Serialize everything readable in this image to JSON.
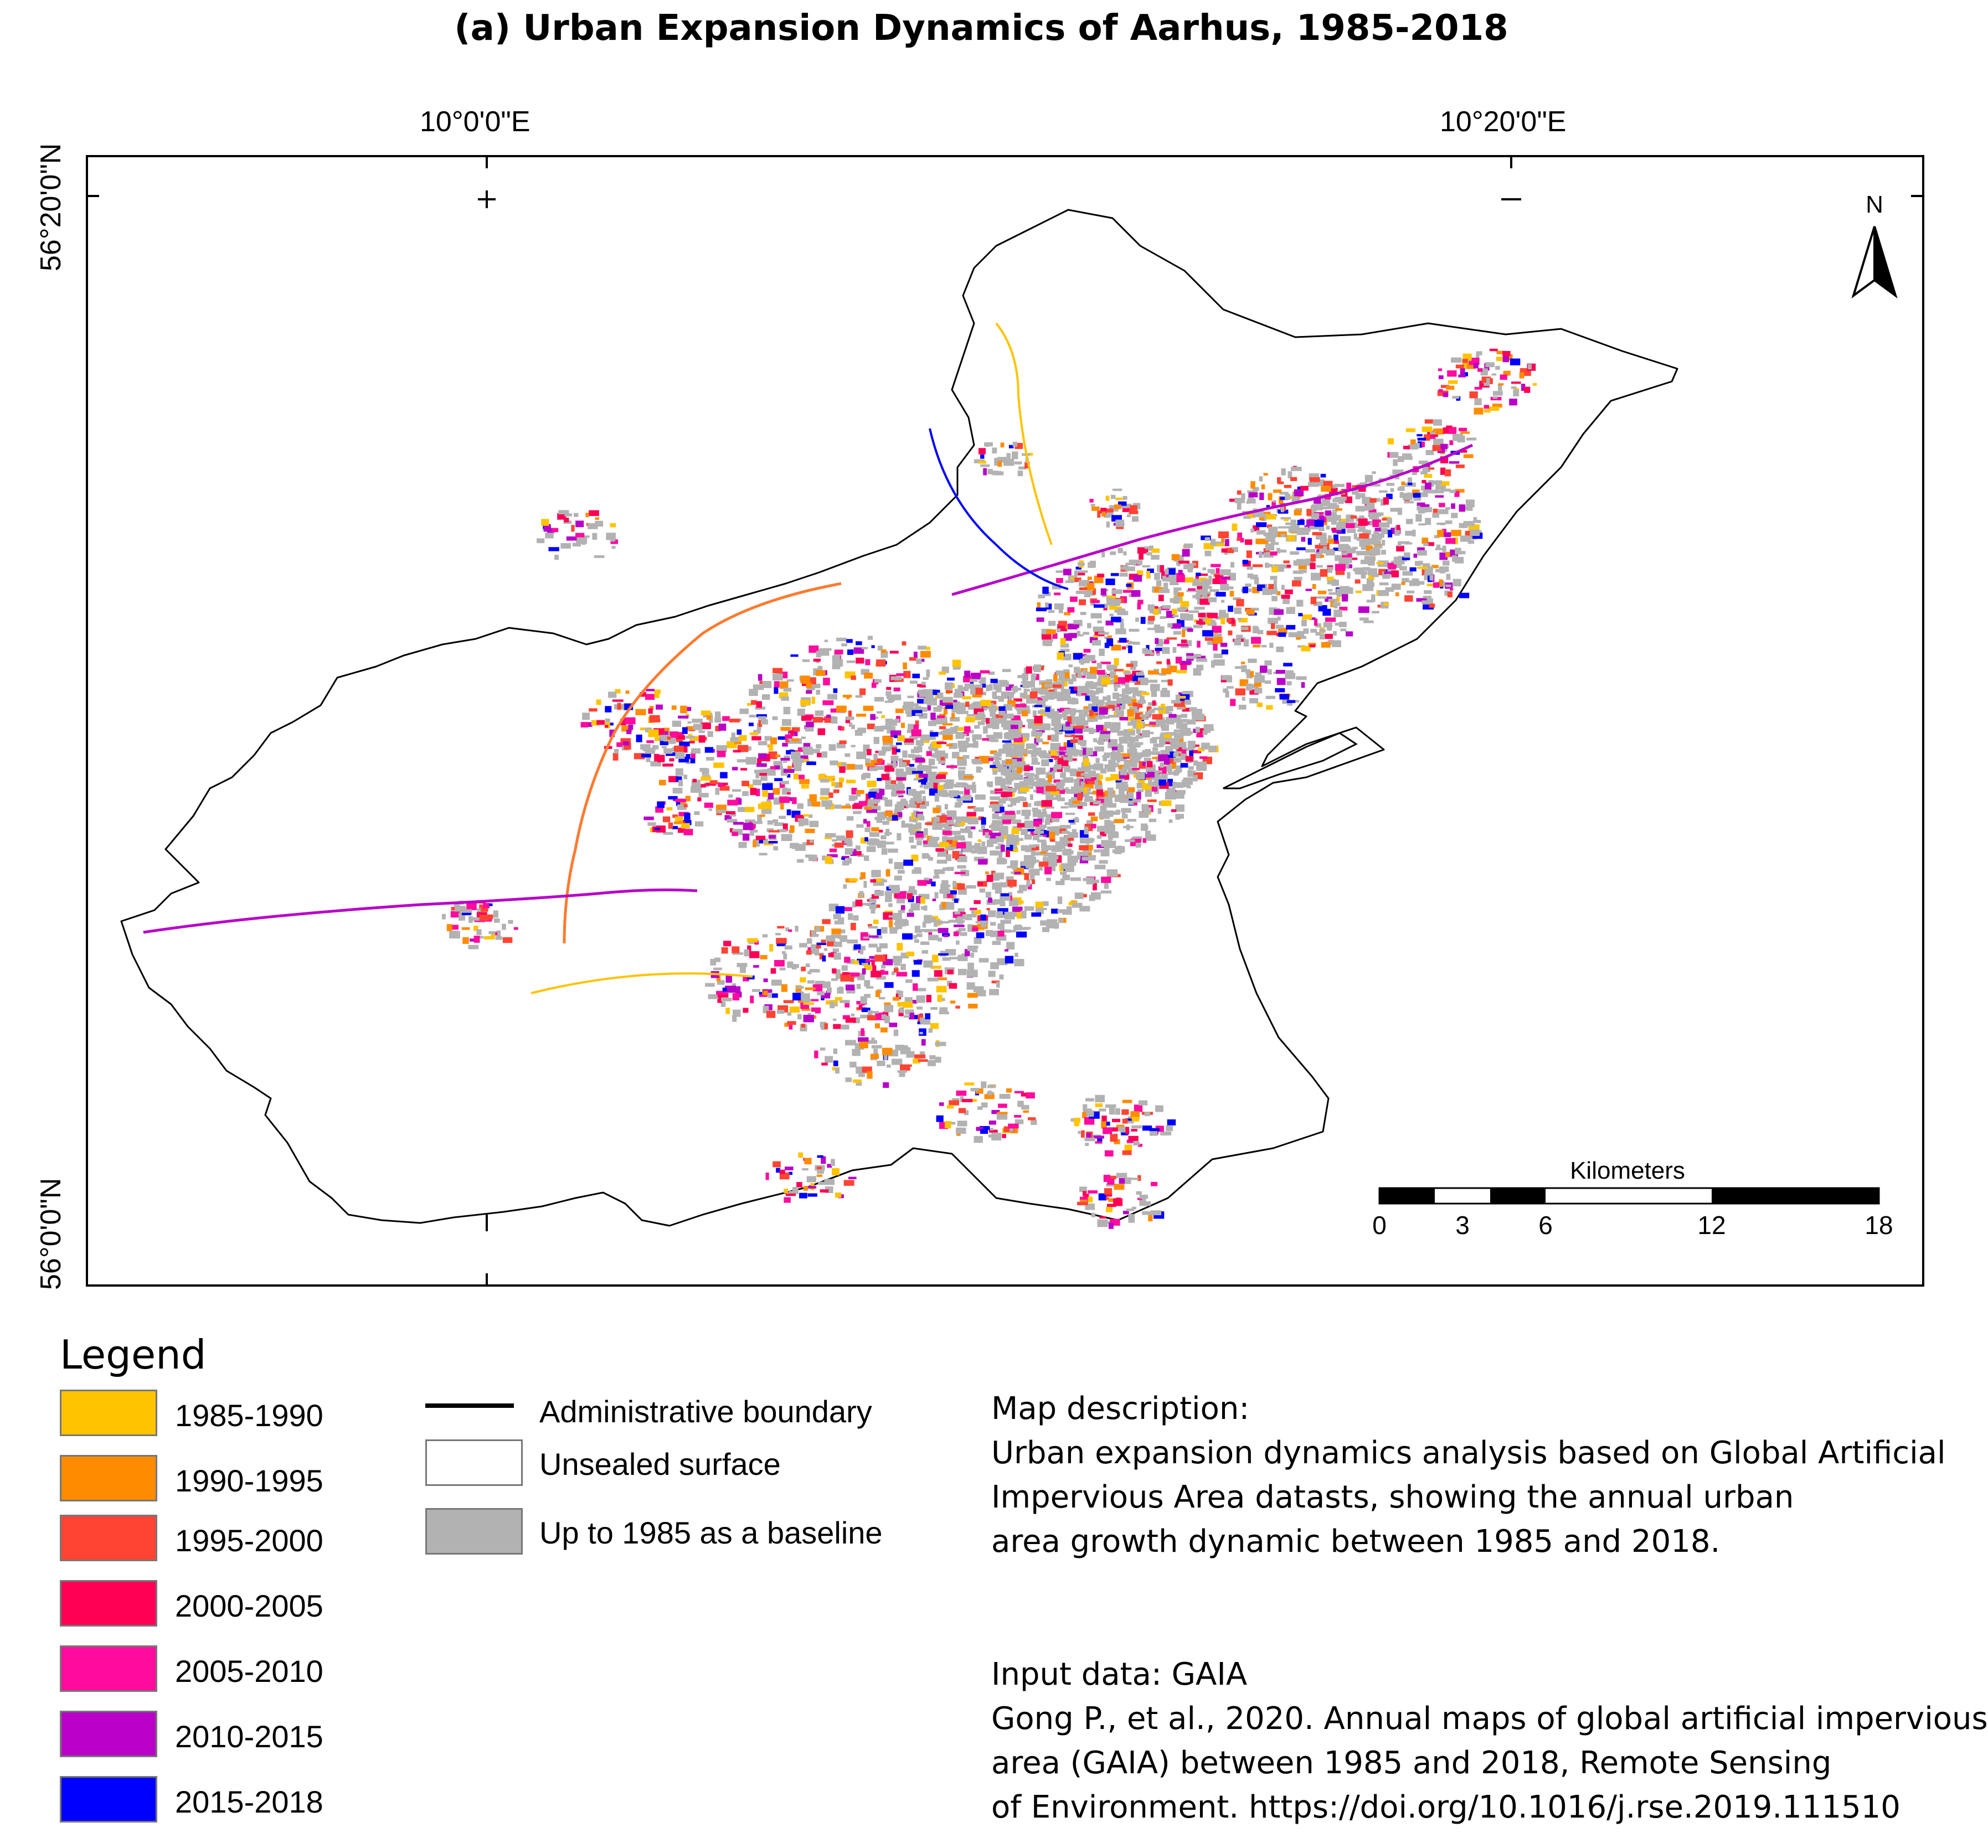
{
  "title": "(a)  Urban Expansion Dynamics of Aarhus, 1985-2018",
  "coords": {
    "lon_left": "10°0'0\"E",
    "lon_right": "10°20'0\"E",
    "lat_top": "56°20'0\"N",
    "lat_bottom": "56°0'0\"N"
  },
  "north_arrow": {
    "label": "N",
    "icon": "north-arrow-icon"
  },
  "scale_bar": {
    "unit": "Kilometers",
    "ticks": [
      "0",
      "3",
      "6",
      "12",
      "18"
    ]
  },
  "legend": {
    "title": "Legend",
    "periods": [
      {
        "label": "1985-1990",
        "color": "#FFC300"
      },
      {
        "label": "1990-1995",
        "color": "#FF8C00"
      },
      {
        "label": "1995-2000",
        "color": "#FF4433"
      },
      {
        "label": "2000-2005",
        "color": "#FF0055"
      },
      {
        "label": "2005-2010",
        "color": "#FF0C9E"
      },
      {
        "label": "2010-2015",
        "color": "#B800C8"
      },
      {
        "label": "2015-2018",
        "color": "#0000FF"
      }
    ],
    "other": [
      {
        "label": "Administrative boundary",
        "kind": "line",
        "color": "#000000"
      },
      {
        "label": "Unsealed surface",
        "kind": "box",
        "color": "#FFFFFF"
      },
      {
        "label": "Up to 1985 as a baseline",
        "kind": "box",
        "color": "#B2B2B2"
      }
    ]
  },
  "description": {
    "heading": "Map description:",
    "lines": [
      "Urban expansion dynamics analysis based on Global Artificial",
      "Impervious Area datasts, showing the annual urban",
      "area growth dynamic between 1985 and 2018."
    ]
  },
  "source": {
    "heading": "Input data: GAIA",
    "lines": [
      "Gong P., et al., 2020. Annual maps of global artificial impervious",
      "area (GAIA) between 1985 and 2018, Remote Sensing",
      "of Environment. https://doi.org/10.1016/j.rse.2019.111510"
    ]
  }
}
